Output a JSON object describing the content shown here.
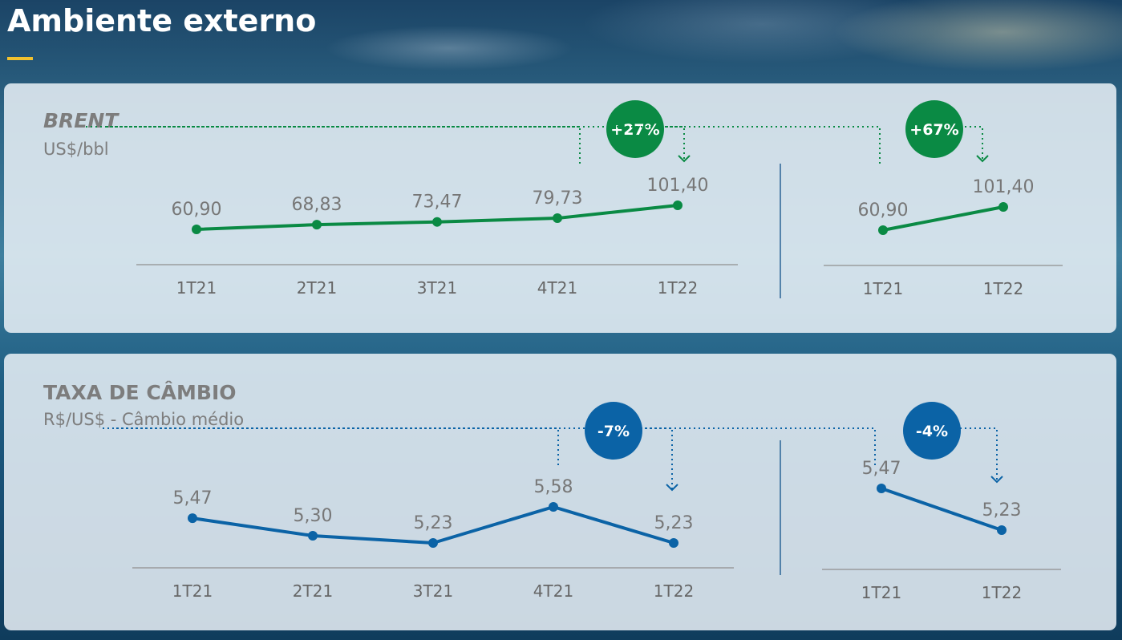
{
  "header": {
    "title": "Ambiente externo"
  },
  "colors": {
    "brent": "#0a8a44",
    "fx": "#0b63a6",
    "accent_bar": "#f2c12e"
  },
  "panels": {
    "brent": {
      "title": "BRENT",
      "subtitle": "US$/bbl"
    },
    "fx": {
      "title": "TAXA DE CÂMBIO",
      "subtitle": "R$/US$ - Câmbio médio"
    }
  },
  "chart_data": [
    {
      "id": "brent_quarterly",
      "type": "line",
      "series_color": "#0a8a44",
      "categories": [
        "1T21",
        "2T21",
        "3T21",
        "4T21",
        "1T22"
      ],
      "values": [
        60.9,
        68.83,
        73.47,
        79.73,
        101.4
      ],
      "value_labels": [
        "60,90",
        "68,83",
        "73,47",
        "79,73",
        "101,40"
      ],
      "annotation": "+27%"
    },
    {
      "id": "brent_ytd",
      "type": "line",
      "series_color": "#0a8a44",
      "categories": [
        "1T21",
        "1T22"
      ],
      "values": [
        60.9,
        101.4
      ],
      "value_labels": [
        "60,90",
        "101,40"
      ],
      "annotation": "+67%"
    },
    {
      "id": "fx_quarterly",
      "type": "line",
      "series_color": "#0b63a6",
      "categories": [
        "1T21",
        "2T21",
        "3T21",
        "4T21",
        "1T22"
      ],
      "values": [
        5.47,
        5.3,
        5.23,
        5.58,
        5.23
      ],
      "value_labels": [
        "5,47",
        "5,30",
        "5,23",
        "5,58",
        "5,23"
      ],
      "annotation": "-7%"
    },
    {
      "id": "fx_ytd",
      "type": "line",
      "series_color": "#0b63a6",
      "categories": [
        "1T21",
        "1T22"
      ],
      "values": [
        5.47,
        5.23
      ],
      "value_labels": [
        "5,47",
        "5,23"
      ],
      "annotation": "-4%"
    }
  ]
}
